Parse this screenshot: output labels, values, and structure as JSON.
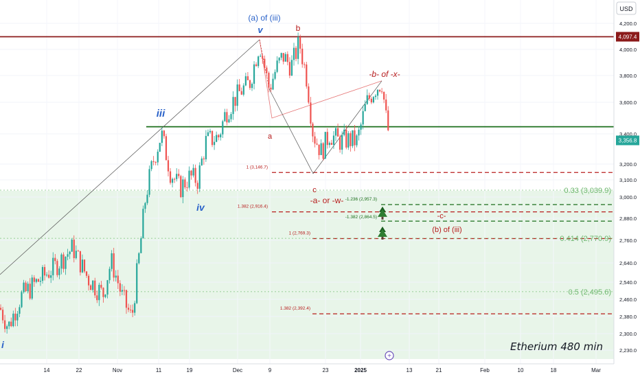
{
  "chart_data": {
    "type": "candlestick",
    "title": "Etherium 480 min",
    "currency": "USD",
    "y_axis_ticks": [
      "4,200.0",
      "4,000.0",
      "3,800.0",
      "3,600.0",
      "3,400.0",
      "3,200.0",
      "3,100.0",
      "3,000.0",
      "2,880.0",
      "2,760.0",
      "2,640.0",
      "2,540.0",
      "2,460.0",
      "2,380.0",
      "2,300.0",
      "2,230.0"
    ],
    "x_axis_ticks": [
      "14",
      "22",
      "Nov",
      "11",
      "19",
      "Dec",
      "9",
      "23",
      "2025",
      "13",
      "21",
      "Feb",
      "10",
      "18",
      "Mar"
    ],
    "price_badges": [
      {
        "label": "4,097.4",
        "value": 4097.4,
        "color": "#8b1a1a"
      },
      {
        "label": "3,356.8",
        "value": 3356.8,
        "color": "#26a69a"
      }
    ],
    "horizontal_lines": [
      {
        "value": 4097.4,
        "color": "#8b1a1a",
        "style": "solid"
      },
      {
        "value": 3445,
        "color": "#1b6e1b",
        "style": "solid"
      },
      {
        "value": 3146.7,
        "color": "#b71c1c",
        "style": "dashed"
      },
      {
        "value": 2957.3,
        "color": "#1b6e1b",
        "style": "dashed"
      },
      {
        "value": 2916.4,
        "color": "#b71c1c",
        "style": "dashed"
      },
      {
        "value": 2864.5,
        "color": "#1b6e1b",
        "style": "dashed"
      },
      {
        "value": 2769.3,
        "color": "#b71c1c",
        "style": "dashed"
      },
      {
        "value": 2392.4,
        "color": "#b71c1c",
        "style": "dashed"
      }
    ],
    "fib_levels": [
      {
        "label": "0.33 (3,039.9)",
        "value": 3039.9
      },
      {
        "label": "0.414 (2,770.9)",
        "value": 2770.9
      },
      {
        "label": "0.5 (2,495.6)",
        "value": 2495.6
      }
    ],
    "fib_labels_small": [
      {
        "label": "1 (3,146.7)",
        "value": 3146.7
      },
      {
        "label": "1.382 (2,916.4)",
        "value": 2916.4
      },
      {
        "label": "-1.236 (2,957.3)",
        "value": 2957.3
      },
      {
        "label": "-1.382 (2,864.5)",
        "value": 2864.5
      },
      {
        "label": "1 (2,769.3)",
        "value": 2769.3
      },
      {
        "label": "1.382 (2,392.4)",
        "value": 2392.4
      }
    ],
    "wave_labels": [
      {
        "text": "(a) of (iii)",
        "color": "#2a62c9"
      },
      {
        "text": "v",
        "color": "#2a62c9"
      },
      {
        "text": "b",
        "color": "#b71c1c"
      },
      {
        "text": "iii",
        "color": "#2a62c9"
      },
      {
        "text": "a",
        "color": "#b71c1c"
      },
      {
        "text": "-b- of -x-",
        "color": "#b71c1c"
      },
      {
        "text": "iv",
        "color": "#2a62c9"
      },
      {
        "text": "c",
        "color": "#b71c1c"
      },
      {
        "text": "-a- or -w-",
        "color": "#b71c1c"
      },
      {
        "text": "-c-",
        "color": "#b71c1c"
      },
      {
        "text": "(b) of (iii)",
        "color": "#b71c1c"
      },
      {
        "text": "i",
        "color": "#2a62c9"
      }
    ],
    "colors": {
      "up": "#26a69a",
      "down": "#ef5350",
      "zone": "#e8f5e9"
    }
  }
}
